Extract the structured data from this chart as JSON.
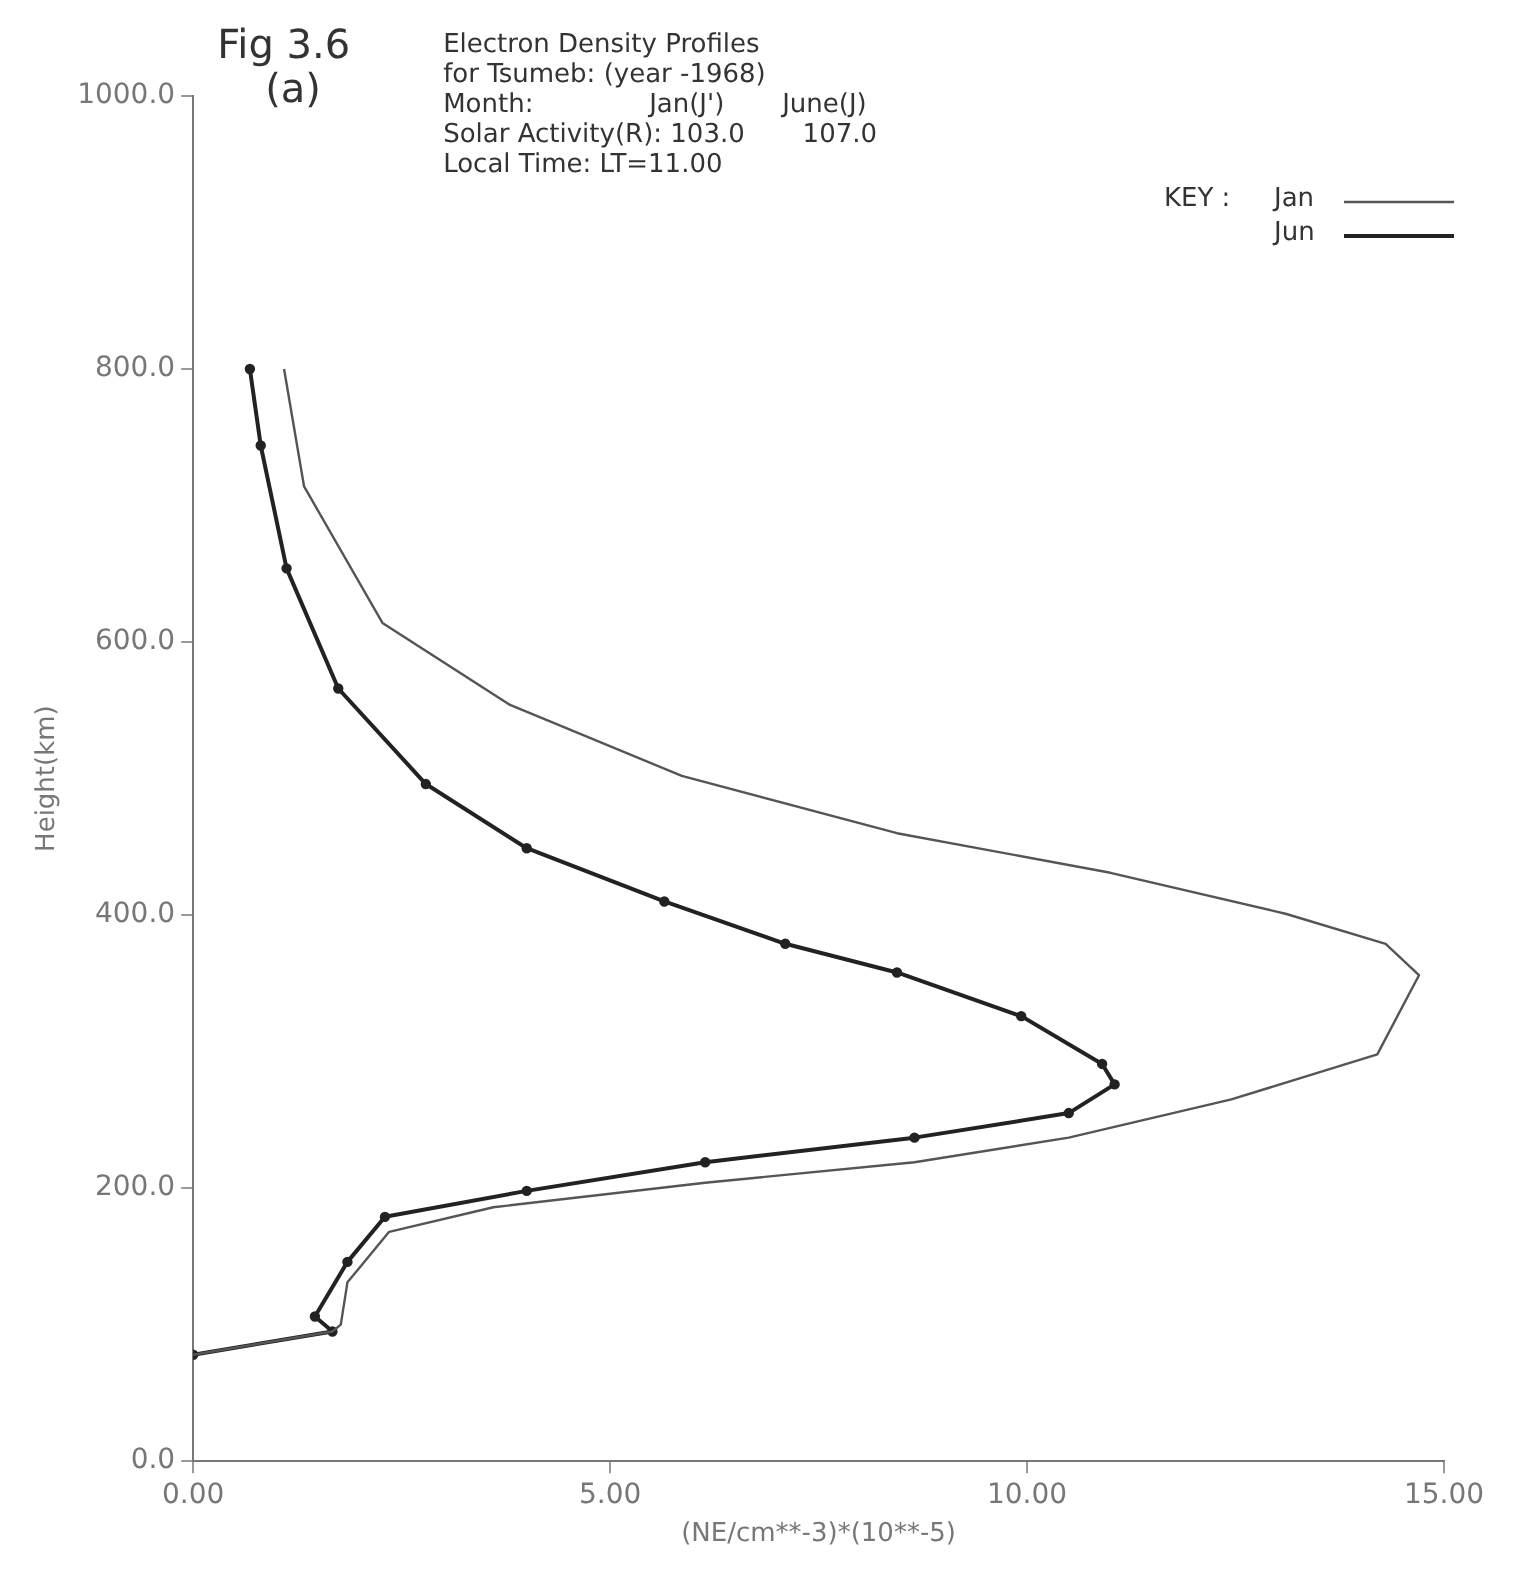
{
  "chart_data": {
    "type": "line",
    "title": "Electron Density Profiles\nfor Tsumeb: (year -1968)",
    "annotations": [
      "Fig 3.6\n(a)",
      "Month:              Jan(J')       June(J)",
      "Solar Activity(R): 103.0       107.0",
      "Local Time: LT=11.00"
    ],
    "xlabel": "(NE/cm**-3)*(10**-5)",
    "ylabel": "Height(km)",
    "legend_title": "KEY :",
    "legend": "top right",
    "xlim": [
      0,
      15
    ],
    "xticks": [
      {
        "value": 0,
        "label": "0.00"
      },
      {
        "value": 5,
        "label": "5.00"
      },
      {
        "value": 10,
        "label": "10.00"
      },
      {
        "value": 15,
        "label": "15.00"
      }
    ],
    "ylim": [
      0,
      1000
    ],
    "yticks": [
      {
        "value": 0,
        "label": "0.0"
      },
      {
        "value": 200,
        "label": "200.0"
      },
      {
        "value": 400,
        "label": "400.0"
      },
      {
        "value": 600,
        "label": "600.0"
      },
      {
        "value": 800,
        "label": "800.0"
      },
      {
        "value": 1000,
        "label": "1000.0"
      }
    ],
    "series": [
      {
        "name": "Jan",
        "color": "#555555",
        "marker": "none",
        "line_style": "solid",
        "x": [
          0,
          1.67,
          1.77,
          1.85,
          2.35,
          3.6,
          6.14,
          8.65,
          10.5,
          12.45,
          14.2,
          14.7,
          14.3,
          13.1,
          11.0,
          8.44,
          5.86,
          3.8,
          2.27,
          1.33,
          1.09
        ],
        "values": [
          78,
          95,
          100,
          131,
          168,
          186,
          204,
          219,
          237,
          265,
          298,
          356,
          379,
          401,
          431,
          460,
          502,
          554,
          614,
          714,
          800
        ]
      },
      {
        "name": "Jun",
        "color": "#222222",
        "marker": "circle",
        "line_style": "solid",
        "x": [
          0,
          1.67,
          1.46,
          1.85,
          2.3,
          4.0,
          6.14,
          8.65,
          10.5,
          11.05,
          10.9,
          9.93,
          8.44,
          7.1,
          5.65,
          4.0,
          2.79,
          1.74,
          1.12,
          0.81,
          0.68
        ],
        "values": [
          78,
          95,
          106,
          146,
          179,
          198,
          219,
          237,
          255,
          276,
          291,
          326,
          358,
          379,
          410,
          449,
          496,
          566,
          654,
          744,
          800
        ]
      }
    ]
  }
}
